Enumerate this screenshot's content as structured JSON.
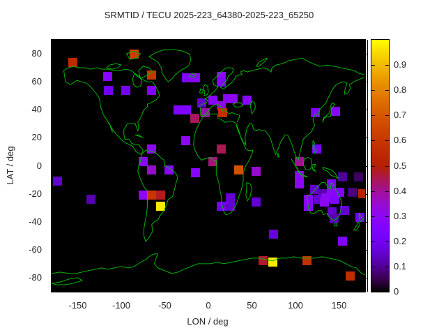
{
  "title": "SRMTID / TECU 2025-223_64380-2025-223_65250",
  "colors": {
    "background": "#ffffff",
    "plot_background": "#000000",
    "coastline": "#00b400",
    "text": "#262626",
    "border": "#000000"
  },
  "axes": {
    "xlabel": "LON / deg",
    "ylabel": "LAT / deg",
    "xlim": [
      -180,
      180
    ],
    "ylim": [
      -90,
      90
    ],
    "x_ticks": [
      -150,
      -100,
      -50,
      0,
      50,
      100,
      150
    ],
    "y_ticks": [
      80,
      60,
      40,
      20,
      0,
      -20,
      -40,
      -60,
      -80
    ]
  },
  "colorbar": {
    "min": 0,
    "max": 1,
    "ticks": [
      0,
      0.1,
      0.2,
      0.3,
      0.4,
      0.5,
      0.6,
      0.7,
      0.8,
      0.9
    ],
    "palette": "gnuplot pm3d black-purple-red-yellow"
  },
  "chart_data": {
    "type": "scatter",
    "marker": "filled-square",
    "value_label": "TECU",
    "point_format": "[lon, lat, value]",
    "points": [
      [
        -156,
        74,
        0.55
      ],
      [
        -85,
        80,
        0.63
      ],
      [
        -116,
        64,
        0.27
      ],
      [
        -65,
        65,
        0.6
      ],
      [
        -115,
        54,
        0.2
      ],
      [
        -95,
        54,
        0.22
      ],
      [
        -65,
        54,
        0.25
      ],
      [
        -25,
        63,
        0.25
      ],
      [
        -15,
        63,
        0.28
      ],
      [
        15,
        64,
        0.3
      ],
      [
        15,
        60,
        0.25
      ],
      [
        -35,
        40,
        0.25
      ],
      [
        -25,
        40,
        0.25
      ],
      [
        -8,
        45,
        0.15
      ],
      [
        5,
        47,
        0.28
      ],
      [
        22,
        48,
        0.3
      ],
      [
        28,
        48,
        0.3
      ],
      [
        44,
        47,
        0.28
      ],
      [
        15,
        43,
        0.33
      ],
      [
        -4,
        38,
        0.38
      ],
      [
        16,
        38,
        0.57
      ],
      [
        -16,
        34,
        0.44
      ],
      [
        123,
        38,
        0.25
      ],
      [
        146,
        39,
        0.28
      ],
      [
        -65,
        12,
        0.3
      ],
      [
        -75,
        3,
        0.3
      ],
      [
        -65,
        -3,
        0.35
      ],
      [
        -173,
        -11,
        0.15
      ],
      [
        -75,
        -21,
        0.3
      ],
      [
        -65,
        -21,
        0.6
      ],
      [
        -55,
        -21,
        0.48
      ],
      [
        -55,
        -29,
        0.97
      ],
      [
        -135,
        -24,
        0.12
      ],
      [
        -26,
        18,
        0.3
      ],
      [
        -45,
        -3,
        0.28
      ],
      [
        -15,
        -5,
        0.27
      ],
      [
        15,
        12,
        0.45
      ],
      [
        5,
        3,
        0.42
      ],
      [
        35,
        -3,
        0.68
      ],
      [
        55,
        -4,
        0.35
      ],
      [
        25,
        -23,
        0.15
      ],
      [
        25,
        -29,
        0.15
      ],
      [
        15,
        -29,
        0.2
      ],
      [
        55,
        -26,
        0.15
      ],
      [
        124,
        12,
        0.22
      ],
      [
        104,
        3,
        0.4
      ],
      [
        104,
        -7,
        0.3
      ],
      [
        104,
        -13,
        0.3
      ],
      [
        154,
        -8,
        0.1
      ],
      [
        172,
        -8,
        0.06
      ],
      [
        122,
        -17,
        0.15
      ],
      [
        131,
        -20,
        0.12
      ],
      [
        141,
        -13,
        0.25
      ],
      [
        141,
        -19,
        0.3
      ],
      [
        151,
        -19,
        0.25
      ],
      [
        115,
        -24,
        0.28
      ],
      [
        126,
        -24,
        0.15
      ],
      [
        135,
        -23,
        0.3
      ],
      [
        145,
        -24,
        0.25
      ],
      [
        133,
        -26,
        0.3
      ],
      [
        165,
        -19,
        0.08
      ],
      [
        177,
        -20,
        0.5
      ],
      [
        115,
        -29,
        0.28
      ],
      [
        142,
        -33,
        0.15
      ],
      [
        144,
        -38,
        0.12
      ],
      [
        156,
        -32,
        0.15
      ],
      [
        174,
        -37,
        0.2
      ],
      [
        75,
        -49,
        0.17
      ],
      [
        154,
        -54,
        0.25
      ],
      [
        63,
        -68,
        0.47
      ],
      [
        74,
        -69,
        0.97
      ],
      [
        113,
        -68,
        0.58
      ],
      [
        163,
        -79,
        0.56
      ]
    ]
  }
}
